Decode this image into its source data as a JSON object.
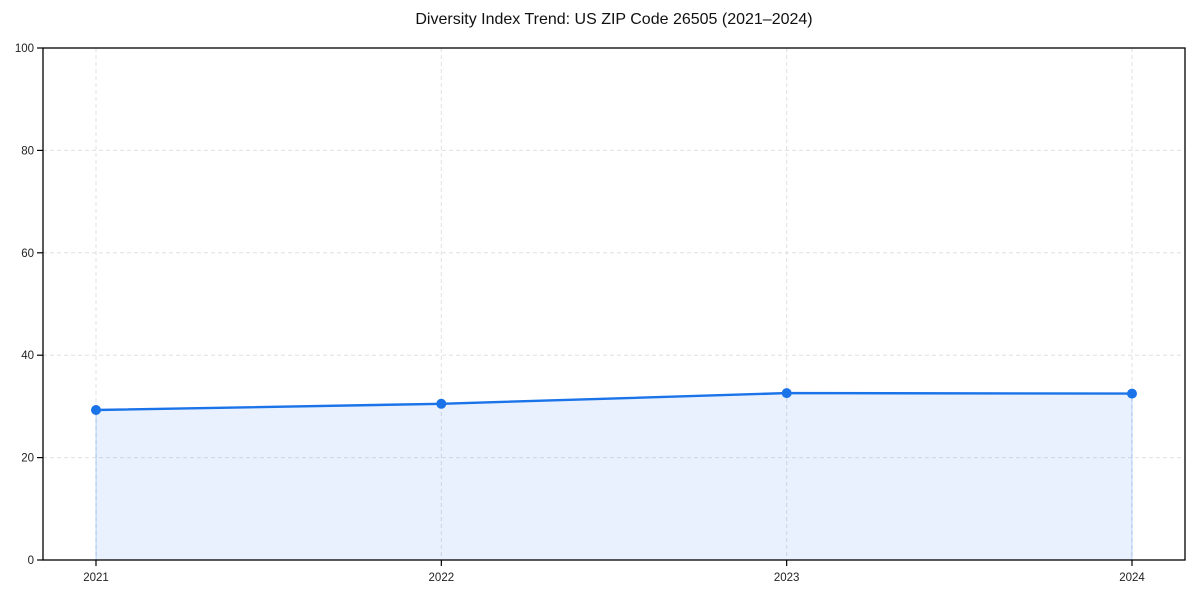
{
  "chart_data": {
    "type": "area",
    "title": "Diversity Index Trend: US ZIP Code 26505 (2021–2024)",
    "x": [
      "2021",
      "2022",
      "2023",
      "2024"
    ],
    "values": [
      29.3,
      30.5,
      32.6,
      32.5
    ],
    "xlabel": "",
    "ylabel": "",
    "ylim": [
      0,
      100
    ],
    "yticks": [
      0,
      20,
      40,
      60,
      80,
      100
    ],
    "grid": true,
    "legend": "none",
    "colors": {
      "line": "#1a73e8",
      "fill": "#1a73e8",
      "fill_opacity": 0.1,
      "grid": "#e0e0e0",
      "spine": "#000000",
      "tick_text": "#222222",
      "background": "#ffffff"
    }
  }
}
